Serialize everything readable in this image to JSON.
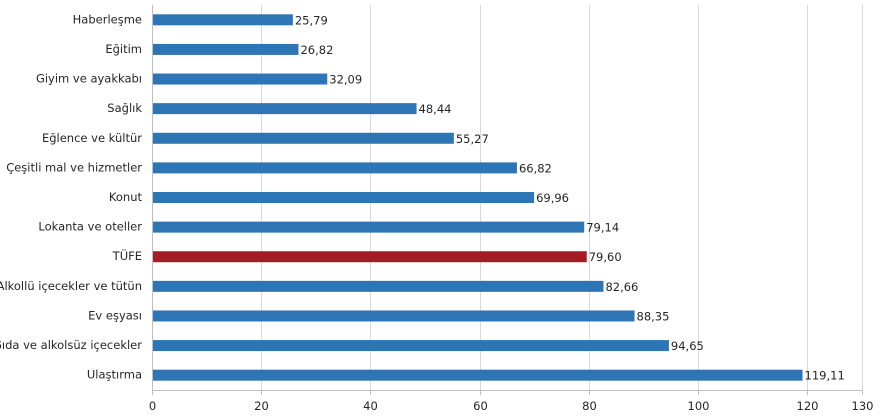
{
  "chart_data": {
    "type": "bar",
    "orientation": "horizontal",
    "categories": [
      "Haberleşme",
      "Eğitim",
      "Giyim ve ayakkabı",
      "Sağlık",
      "Eğlence ve kültür",
      "Çeşitli mal ve hizmetler",
      "Konut",
      "Lokanta ve oteller",
      "TÜFE",
      "Alkollü içecekler ve tütün",
      "Ev eşyası",
      "Gıda ve alkolsüz içecekler",
      "Ulaştırma"
    ],
    "values": [
      25.79,
      26.82,
      32.09,
      48.44,
      55.27,
      66.82,
      69.96,
      79.14,
      79.6,
      82.66,
      88.35,
      94.65,
      119.11
    ],
    "value_labels": [
      "25,79",
      "26,82",
      "32,09",
      "48,44",
      "55,27",
      "66,82",
      "69,96",
      "79,14",
      "79,60",
      "82,66",
      "88,35",
      "94,65",
      "119,11"
    ],
    "bar_colors": [
      "#2e75b6",
      "#2e75b6",
      "#2e75b6",
      "#2e75b6",
      "#2e75b6",
      "#2e75b6",
      "#2e75b6",
      "#2e75b6",
      "#a31d24",
      "#2e75b6",
      "#2e75b6",
      "#2e75b6",
      "#2e75b6"
    ],
    "xlim": [
      0,
      130
    ],
    "xticks": [
      0,
      20,
      40,
      60,
      80,
      100,
      120,
      130
    ],
    "grid": true,
    "title": "",
    "xlabel": "",
    "ylabel": ""
  }
}
